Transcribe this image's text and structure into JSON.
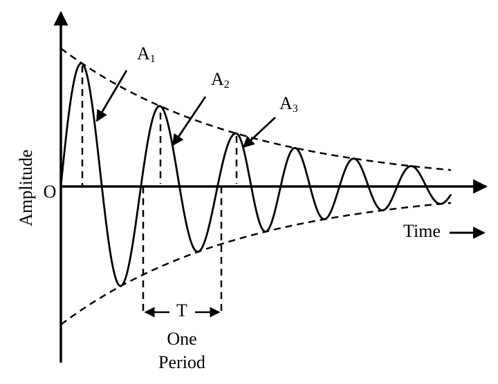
{
  "origin": "O",
  "y_axis_label": "Amplitude",
  "x_axis_label": "Time",
  "amplitudes": [
    {
      "base": "A",
      "sub": "1"
    },
    {
      "base": "A",
      "sub": "2"
    },
    {
      "base": "A",
      "sub": "3"
    }
  ],
  "period": {
    "symbol": "T",
    "line1": "One",
    "line2": "Period"
  }
}
